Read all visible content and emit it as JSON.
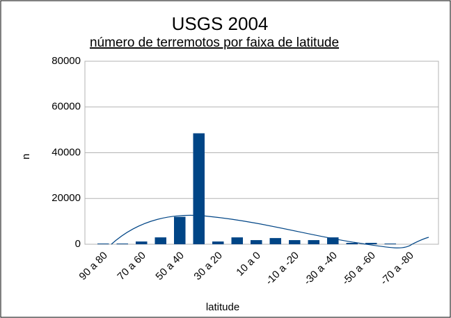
{
  "chart_data": {
    "type": "bar",
    "title": "USGS 2004",
    "subtitle": "número de terremotos por faixa de latitude",
    "x_label": "latitude",
    "y_label": "n",
    "categories": [
      "90 a 80",
      null,
      "70 a 60",
      null,
      "50 a 40",
      null,
      "30 a 20",
      null,
      "10 a 0",
      null,
      "-10 a -20",
      null,
      "-30 a -40",
      null,
      "-50 a -60",
      null,
      "-70 a -80",
      null
    ],
    "values": [
      300,
      300,
      1200,
      3000,
      12000,
      48500,
      1200,
      3000,
      1800,
      2700,
      1800,
      1800,
      3000,
      600,
      600,
      300,
      0,
      0
    ],
    "color": "#004586",
    "ylim": [
      0,
      80000
    ],
    "yticks": [
      0,
      20000,
      40000,
      60000,
      80000
    ],
    "grid": true
  }
}
